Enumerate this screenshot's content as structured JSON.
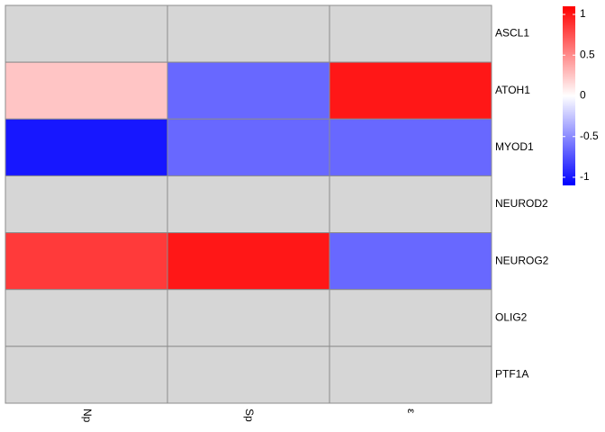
{
  "chart_data": {
    "type": "heatmap",
    "title": "",
    "rows": [
      "ASCL1",
      "ATOH1",
      "MYOD1",
      "NEUROD2",
      "NEUROG2",
      "OLIG2",
      "PTF1A"
    ],
    "columns": [
      "Np",
      "Sp",
      "ε"
    ],
    "values": [
      [
        null,
        null,
        null
      ],
      [
        0.25,
        -0.65,
        1.0
      ],
      [
        -1.0,
        -0.65,
        -0.65
      ],
      [
        null,
        null,
        null
      ],
      [
        0.85,
        1.0,
        -0.65
      ],
      [
        null,
        null,
        null
      ],
      [
        null,
        null,
        null
      ]
    ],
    "color_scale": {
      "min": -1.1,
      "max": 1.1,
      "low_color": "#0000FF",
      "mid_color": "#FFFFFF",
      "high_color": "#FF0000",
      "na_color": "#D6D6D6"
    },
    "cell_border_color": "#8C8C8C",
    "legend": {
      "position": "right",
      "ticks": [
        1,
        0.5,
        0,
        -0.5,
        -1
      ],
      "tick_labels": [
        "1",
        "0.5",
        "0",
        "-0.5",
        "-1"
      ]
    },
    "grid": false
  }
}
